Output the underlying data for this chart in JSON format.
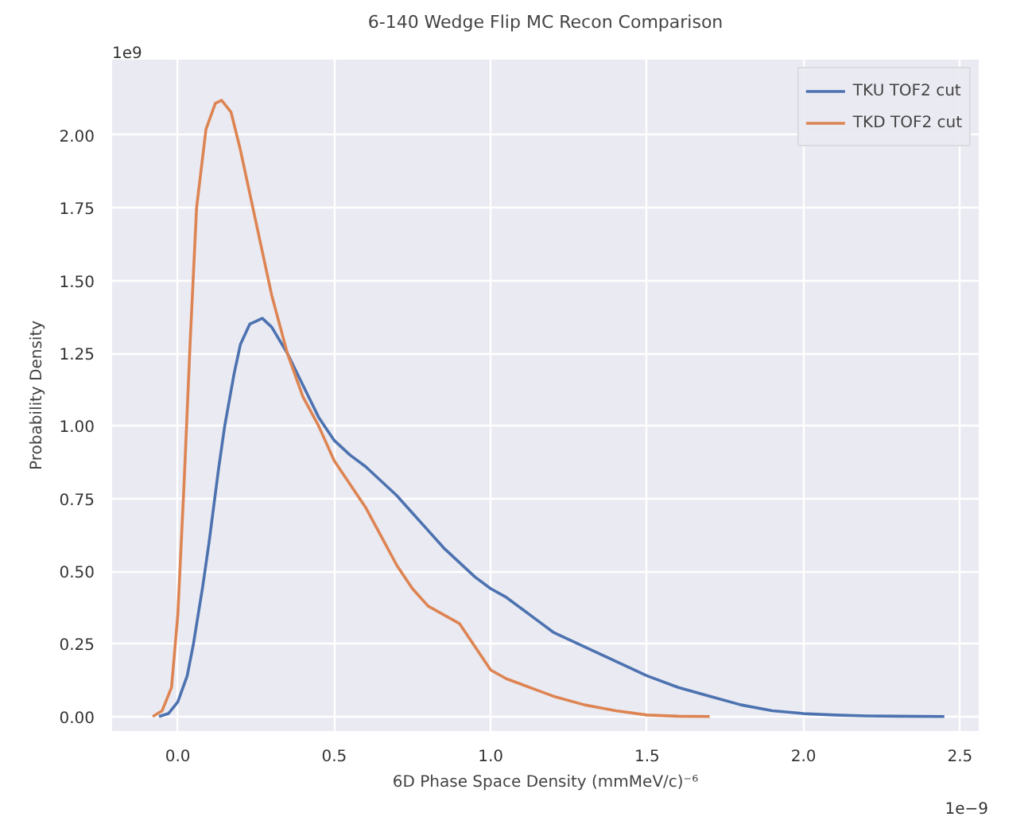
{
  "chart_data": {
    "type": "line",
    "title": "6-140 Wedge Flip MC Recon Comparison",
    "xlabel": "6D Phase Space Density (mmMeV/c)⁻⁶",
    "ylabel": "Probability Density",
    "annotations": [
      "1e9",
      "1e−9"
    ],
    "series": [
      {
        "name": "TKU TOF2 cut",
        "color": "#4c72b0",
        "x": [
          -0.06,
          -0.03,
          0.0,
          0.03,
          0.05,
          0.08,
          0.1,
          0.13,
          0.15,
          0.18,
          0.2,
          0.23,
          0.25,
          0.27,
          0.3,
          0.35,
          0.4,
          0.45,
          0.5,
          0.55,
          0.6,
          0.65,
          0.7,
          0.75,
          0.8,
          0.85,
          0.9,
          0.95,
          1.0,
          1.05,
          1.1,
          1.15,
          1.2,
          1.3,
          1.4,
          1.5,
          1.6,
          1.7,
          1.8,
          1.9,
          2.0,
          2.1,
          2.2,
          2.3,
          2.45
        ],
        "values": [
          0.0,
          0.01,
          0.05,
          0.14,
          0.25,
          0.45,
          0.6,
          0.85,
          1.0,
          1.18,
          1.28,
          1.35,
          1.36,
          1.37,
          1.34,
          1.25,
          1.14,
          1.03,
          0.95,
          0.9,
          0.86,
          0.81,
          0.76,
          0.7,
          0.64,
          0.58,
          0.53,
          0.48,
          0.44,
          0.41,
          0.37,
          0.33,
          0.29,
          0.24,
          0.19,
          0.14,
          0.1,
          0.07,
          0.04,
          0.02,
          0.01,
          0.005,
          0.002,
          0.001,
          0.0
        ]
      },
      {
        "name": "TKD TOF2 cut",
        "color": "#dd8452",
        "x": [
          -0.08,
          -0.05,
          -0.02,
          0.0,
          0.02,
          0.04,
          0.06,
          0.09,
          0.12,
          0.14,
          0.17,
          0.2,
          0.25,
          0.3,
          0.35,
          0.4,
          0.45,
          0.5,
          0.55,
          0.6,
          0.65,
          0.7,
          0.75,
          0.8,
          0.85,
          0.9,
          0.95,
          1.0,
          1.05,
          1.1,
          1.15,
          1.2,
          1.3,
          1.4,
          1.5,
          1.6,
          1.7
        ],
        "values": [
          0.0,
          0.02,
          0.1,
          0.35,
          0.8,
          1.3,
          1.75,
          2.02,
          2.11,
          2.12,
          2.08,
          1.95,
          1.7,
          1.45,
          1.25,
          1.1,
          1.0,
          0.88,
          0.8,
          0.72,
          0.62,
          0.52,
          0.44,
          0.38,
          0.35,
          0.32,
          0.24,
          0.16,
          0.13,
          0.11,
          0.09,
          0.07,
          0.04,
          0.02,
          0.005,
          0.001,
          0.0
        ]
      }
    ],
    "xlim": [
      -0.21,
      2.56
    ],
    "ylim": [
      -0.05,
      2.26
    ],
    "xticks": [
      {
        "value": 0,
        "label": "0.0"
      },
      0.5,
      {
        "value": 1,
        "label": "1.0"
      },
      1.5,
      {
        "value": 2,
        "label": "2.0"
      },
      2.5
    ],
    "yticks": [
      {
        "value": 0,
        "label": "0.00"
      },
      0.25,
      {
        "value": 0.5,
        "label": "0.50"
      },
      0.75,
      {
        "value": 1,
        "label": "1.00"
      },
      1.25,
      {
        "value": 1.5,
        "label": "1.50"
      },
      1.75,
      {
        "value": 2,
        "label": "2.00"
      }
    ],
    "grid": true,
    "legend": "top right",
    "line_style": "solid",
    "marker": "none"
  }
}
